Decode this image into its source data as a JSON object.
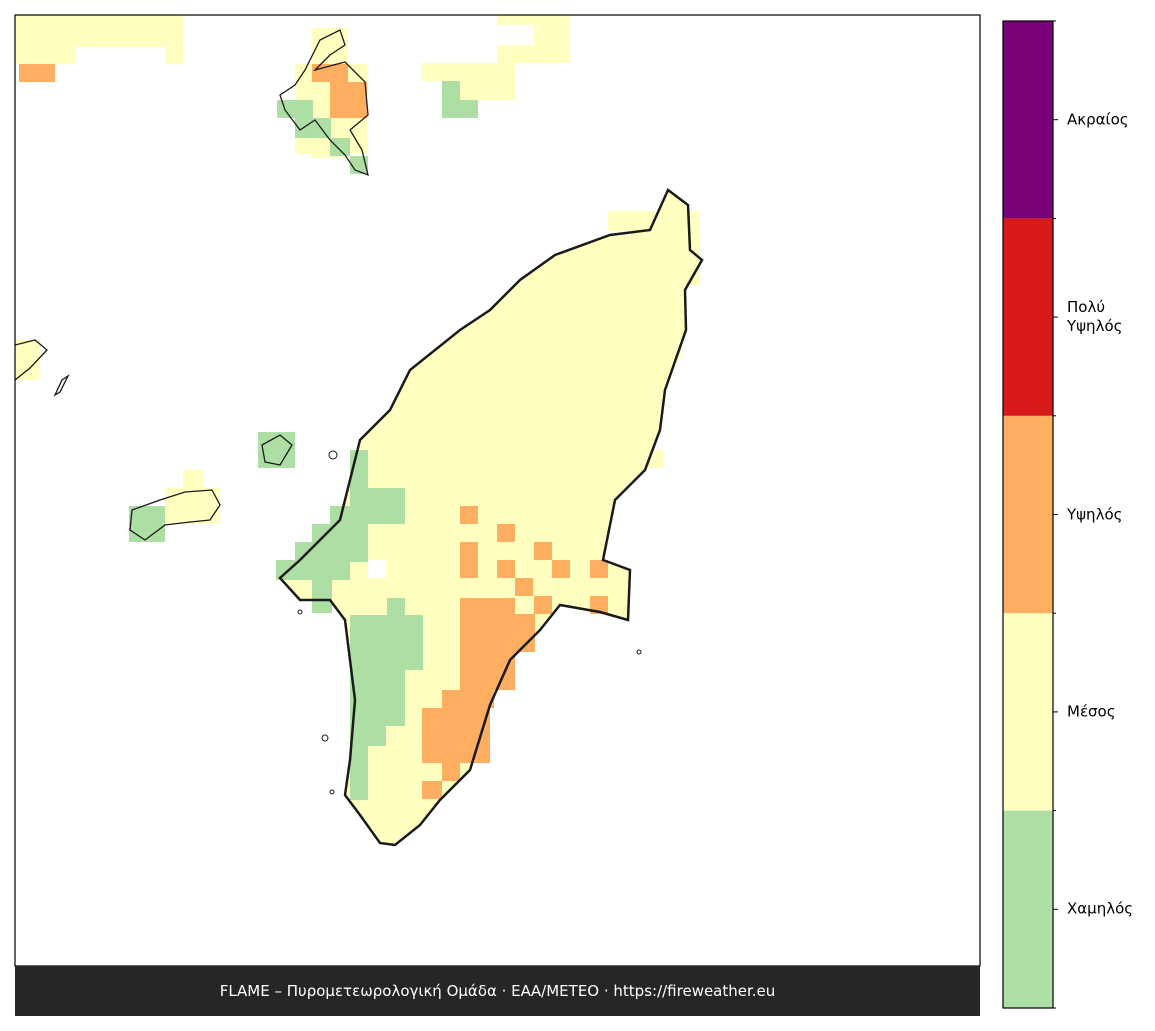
{
  "legend": {
    "levels": [
      {
        "label": "Χαμηλός",
        "color": "#addfa5"
      },
      {
        "label": "Μέσος",
        "color": "#ffffbf"
      },
      {
        "label": "Υψηλός",
        "color": "#fdae61"
      },
      {
        "label": "Πολύ Υψηλός",
        "color": "#d7191c"
      },
      {
        "label": "Ακραίος",
        "color": "#7a0177"
      }
    ]
  },
  "footer": "FLAME – Πυρομετεωρολογική Ομάδα · ΕΑΑ/METEO · https://fireweather.eu"
}
